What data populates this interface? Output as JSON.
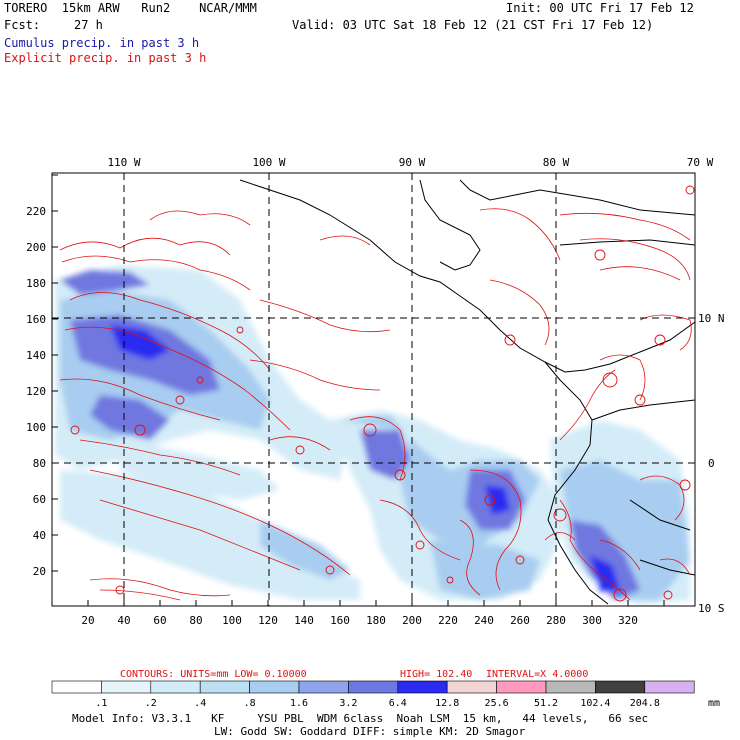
{
  "header": {
    "title_left": "TORERO  15km ARW   Run2    NCAR/MMM",
    "init": "Init: 00 UTC Fri 17 Feb 12",
    "fcst_label": "Fcst:",
    "fcst_value": "27 h",
    "valid": "Valid: 03 UTC Sat 18 Feb 12 (21 CST Fri 17 Feb 12)",
    "cumulus": "Cumulus precip. in past 3 h",
    "explicit": "Explicit precip. in past 3 h"
  },
  "map": {
    "lon_labels": [
      "110 W",
      "100 W",
      "90 W",
      "80 W",
      "70 W"
    ],
    "lat_labels": [
      "10 N",
      "0",
      "10 S"
    ],
    "x_ticks": [
      "20",
      "40",
      "60",
      "80",
      "100",
      "120",
      "140",
      "160",
      "180",
      "200",
      "220",
      "240",
      "260",
      "280",
      "300",
      "320"
    ],
    "y_ticks": [
      "20",
      "40",
      "60",
      "80",
      "100",
      "120",
      "140",
      "160",
      "180",
      "200",
      "220"
    ]
  },
  "contours_line": {
    "contours": "CONTOURS:  UNITS=mm  LOW= 0.10000",
    "high": "HIGH=  102.40",
    "interval": "INTERVAL=X  4.0000"
  },
  "colorbar": {
    "labels": [
      ".1",
      ".2",
      ".4",
      ".8",
      "1.6",
      "3.2",
      "6.4",
      "12.8",
      "25.6",
      "51.2",
      "102.4",
      "204.8"
    ],
    "units": "mm",
    "colors": [
      "#ffffff",
      "#e8f4fb",
      "#d4ecf8",
      "#bcdff4",
      "#a8cdf0",
      "#8fa4ea",
      "#6f78e0",
      "#2a2af0",
      "#f2d6d6",
      "#ff99c0",
      "#b8b8b8",
      "#404040",
      "#d8b0f0"
    ]
  },
  "model_info": {
    "line1": "Model Info: V3.3.1   KF     YSU PBL  WDM 6class  Noah LSM  15 km,   44 levels,   66 sec",
    "line2": "LW: Godd SW: Goddard DIFF: simple KM: 2D Smagor"
  }
}
